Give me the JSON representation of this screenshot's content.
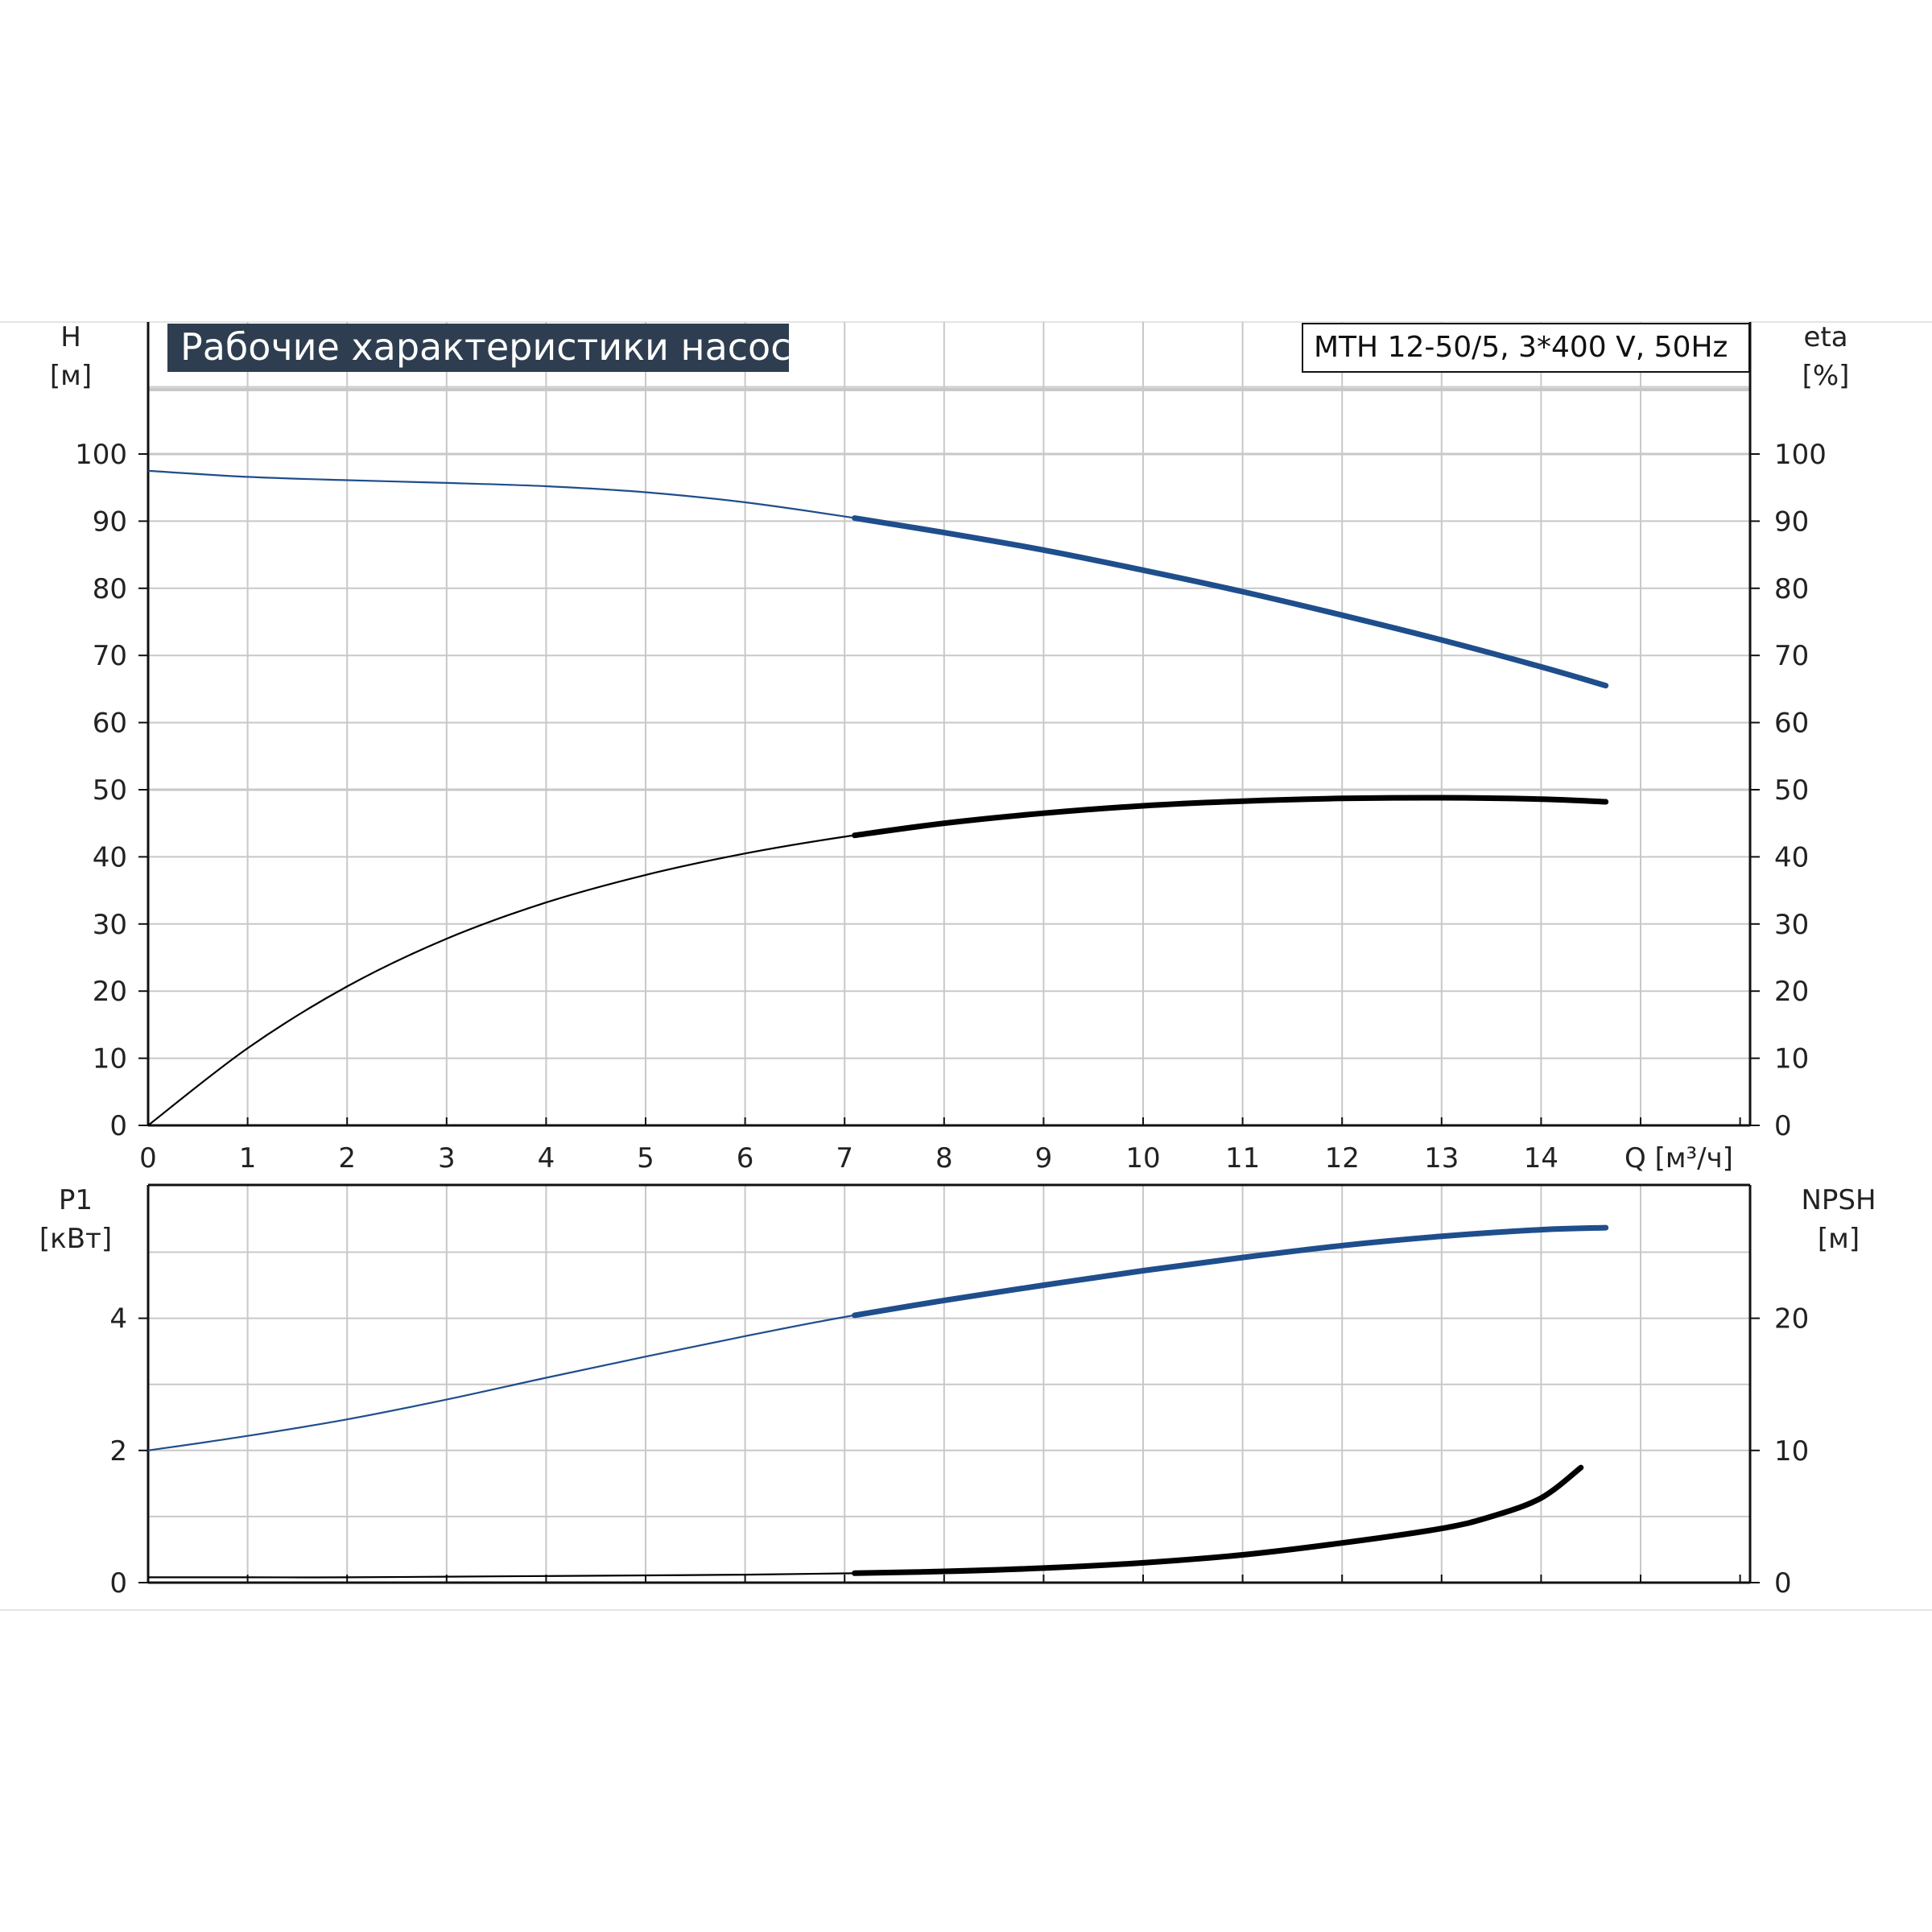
{
  "title": "Рабочие характеристики насоса",
  "model": "MTH 12-50/5, 3*400 V, 50Hz",
  "colors": {
    "blue": "#1f4e8c",
    "black": "#000000",
    "grid": "#c8c8c8",
    "title_bg": "#2e3e50"
  },
  "chart_data": [
    {
      "type": "line",
      "x_axis": {
        "label": "Q [м³/ч]",
        "ticks": [
          "0",
          "1",
          "2",
          "3",
          "4",
          "5",
          "6",
          "7",
          "8",
          "9",
          "10",
          "11",
          "12",
          "13",
          "14"
        ],
        "range": [
          0,
          16
        ]
      },
      "left_axis": {
        "label_top": "H",
        "label_unit": "[м]",
        "ticks": [
          "0",
          "10",
          "20",
          "30",
          "40",
          "50",
          "60",
          "70",
          "80",
          "90",
          "100"
        ],
        "range": [
          0,
          100
        ]
      },
      "right_axis": {
        "label_top": "eta",
        "label_unit": "[%]",
        "ticks": [
          "0",
          "10",
          "20",
          "30",
          "40",
          "50",
          "60",
          "70",
          "80",
          "90",
          "100"
        ],
        "range": [
          0,
          100
        ]
      },
      "grid": true,
      "series": [
        {
          "color": "blue",
          "axis": "left",
          "emphasis_from": 7.1,
          "x": [
            0,
            1,
            2,
            3,
            4,
            5,
            6,
            7,
            8,
            9,
            10,
            11,
            12,
            13,
            14,
            14.65
          ],
          "y": [
            97.5,
            96.6,
            96.1,
            95.7,
            95.2,
            94.3,
            92.8,
            90.7,
            88.3,
            85.7,
            82.7,
            79.5,
            76.0,
            72.3,
            68.3,
            65.5
          ]
        },
        {
          "color": "black",
          "axis": "right",
          "emphasis_from": 7.1,
          "x": [
            0,
            1,
            2,
            3,
            4,
            5,
            6,
            7,
            8,
            9,
            10,
            11,
            12,
            13,
            14,
            14.65
          ],
          "y": [
            0,
            11.5,
            20.7,
            27.8,
            33.2,
            37.3,
            40.5,
            43.0,
            45.0,
            46.5,
            47.6,
            48.3,
            48.7,
            48.8,
            48.6,
            48.2
          ]
        }
      ]
    },
    {
      "type": "line",
      "x_axis": {
        "range": [
          0,
          16
        ]
      },
      "left_axis": {
        "label_top": "P1",
        "label_unit": "[кВт]",
        "ticks": [
          "0",
          "2",
          "4"
        ],
        "range": [
          0,
          6
        ]
      },
      "right_axis": {
        "label_top": "NPSH",
        "label_unit": "[м]",
        "ticks": [
          "0",
          "10",
          "20"
        ],
        "range": [
          0,
          30
        ]
      },
      "grid": true,
      "series": [
        {
          "color": "blue",
          "axis": "left",
          "emphasis_from": 7.1,
          "x": [
            0,
            1,
            2,
            3,
            4,
            5,
            6,
            7,
            8,
            9,
            10,
            11,
            12,
            13,
            14,
            14.65
          ],
          "y": [
            2.0,
            2.22,
            2.47,
            2.77,
            3.1,
            3.42,
            3.73,
            4.02,
            4.27,
            4.5,
            4.72,
            4.92,
            5.1,
            5.24,
            5.34,
            5.37
          ]
        },
        {
          "color": "black",
          "axis": "right",
          "emphasis_from": 7.1,
          "x": [
            0,
            1,
            2,
            3,
            4,
            5,
            6,
            7,
            8,
            9,
            10,
            11,
            12,
            13,
            13.5,
            14,
            14.4
          ],
          "y": [
            0.4,
            0.4,
            0.4,
            0.45,
            0.5,
            0.55,
            0.6,
            0.7,
            0.85,
            1.1,
            1.5,
            2.1,
            3.0,
            4.1,
            5.0,
            6.4,
            8.7
          ]
        }
      ]
    }
  ]
}
